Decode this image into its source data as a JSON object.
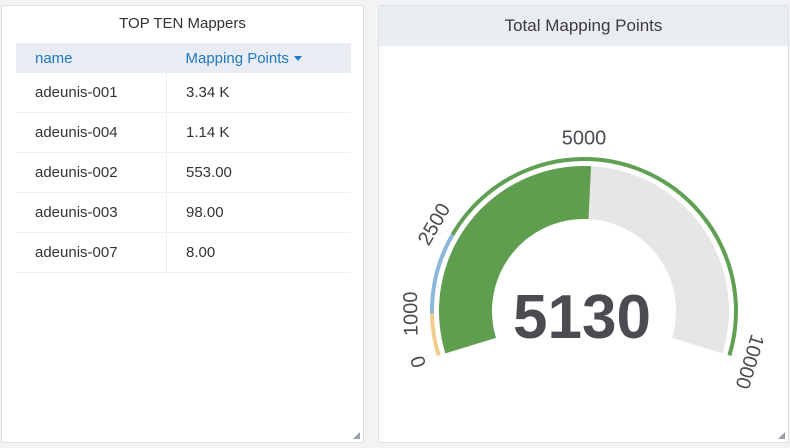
{
  "left_panel": {
    "title": "TOP TEN Mappers",
    "columns": {
      "name": "name",
      "points": "Mapping Points"
    },
    "rows": [
      {
        "name": "adeunis-001",
        "points": "3.34 K"
      },
      {
        "name": "adeunis-004",
        "points": "1.14 K"
      },
      {
        "name": "adeunis-002",
        "points": "553.00"
      },
      {
        "name": "adeunis-003",
        "points": "98.00"
      },
      {
        "name": "adeunis-007",
        "points": "8.00"
      }
    ]
  },
  "right_panel": {
    "title": "Total Mapping Points",
    "gauge": {
      "value": 5130,
      "value_label": "5130",
      "min": 0,
      "max": 10000,
      "thresholds": [
        {
          "from": 0,
          "to": 1000,
          "color": "#f2cc8f"
        },
        {
          "from": 1000,
          "to": 2500,
          "color": "#8ab8dc"
        },
        {
          "from": 2500,
          "to": 10000,
          "color": "#5fa052"
        }
      ],
      "tick_labels": [
        "0",
        "1000",
        "2500",
        "5000",
        "10000"
      ],
      "fill_color": "#5f9e4e",
      "track_color": "#e6e6e6",
      "value_text_color": "#4a4c52"
    }
  }
}
